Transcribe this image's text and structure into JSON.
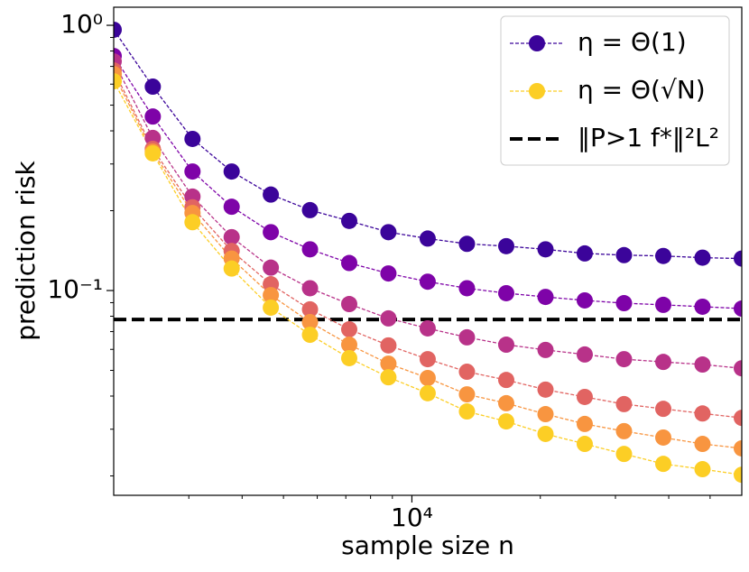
{
  "chart_data": {
    "type": "line",
    "xlabel": "sample size n",
    "ylabel": "prediction risk",
    "x": [
      2000,
      2470,
      3060,
      3780,
      4670,
      5770,
      7130,
      8810,
      10890,
      13460,
      16640,
      20570,
      25420,
      31420,
      38840,
      48000,
      59330
    ],
    "xlog": true,
    "ylog": true,
    "xlim": [
      2000,
      59330
    ],
    "ylim": [
      0.0169,
      1.17
    ],
    "xticks": [
      {
        "value": 10000,
        "label": "10⁴"
      }
    ],
    "xminorticks": [
      3000,
      4000,
      5000,
      6000,
      7000,
      8000,
      9000,
      20000,
      30000,
      40000,
      50000
    ],
    "yticks": [
      {
        "value": 1,
        "label": "10⁰"
      },
      {
        "value": 0.1,
        "label": "10⁻¹"
      }
    ],
    "yminorticks": [
      0.02,
      0.03,
      0.04,
      0.05,
      0.06,
      0.07,
      0.08,
      0.09,
      0.2,
      0.3,
      0.4,
      0.5,
      0.6,
      0.7,
      0.8,
      0.9
    ],
    "legend": "upper right",
    "series": [
      {
        "name": "η = Θ(1)",
        "color": "#3b049a",
        "values": [
          0.962,
          0.587,
          0.373,
          0.281,
          0.23,
          0.201,
          0.183,
          0.166,
          0.157,
          0.15,
          0.147,
          0.143,
          0.138,
          0.136,
          0.135,
          0.133,
          0.132
        ]
      },
      {
        "color": "#7e03a8",
        "values": [
          0.766,
          0.453,
          0.281,
          0.207,
          0.166,
          0.143,
          0.127,
          0.116,
          0.108,
          0.102,
          0.0977,
          0.0946,
          0.0918,
          0.0896,
          0.0883,
          0.0869,
          0.0855
        ]
      },
      {
        "color": "#b83289",
        "values": [
          0.731,
          0.376,
          0.226,
          0.159,
          0.122,
          0.102,
          0.0889,
          0.0785,
          0.072,
          0.0666,
          0.0625,
          0.0597,
          0.0574,
          0.0551,
          0.0538,
          0.0526,
          0.0509
        ]
      },
      {
        "color": "#e16462",
        "values": [
          0.676,
          0.342,
          0.206,
          0.141,
          0.1056,
          0.0849,
          0.0714,
          0.0621,
          0.0551,
          0.0494,
          0.046,
          0.0423,
          0.0397,
          0.0373,
          0.0358,
          0.0344,
          0.0331
        ]
      },
      {
        "color": "#f89540",
        "values": [
          0.655,
          0.334,
          0.196,
          0.132,
          0.0961,
          0.076,
          0.0625,
          0.053,
          0.0468,
          0.0406,
          0.0376,
          0.0342,
          0.0314,
          0.0295,
          0.0279,
          0.0264,
          0.0254
        ]
      },
      {
        "name": "η = Θ(√N)",
        "color": "#fcce25",
        "values": [
          0.615,
          0.329,
          0.181,
          0.121,
          0.0862,
          0.0681,
          0.0556,
          0.0471,
          0.041,
          0.035,
          0.0321,
          0.0288,
          0.0264,
          0.0242,
          0.0222,
          0.0212,
          0.0202
        ]
      }
    ],
    "reference": {
      "name": "‖P>1 f*‖²L²",
      "value": 0.0778,
      "color": "#000000"
    }
  }
}
